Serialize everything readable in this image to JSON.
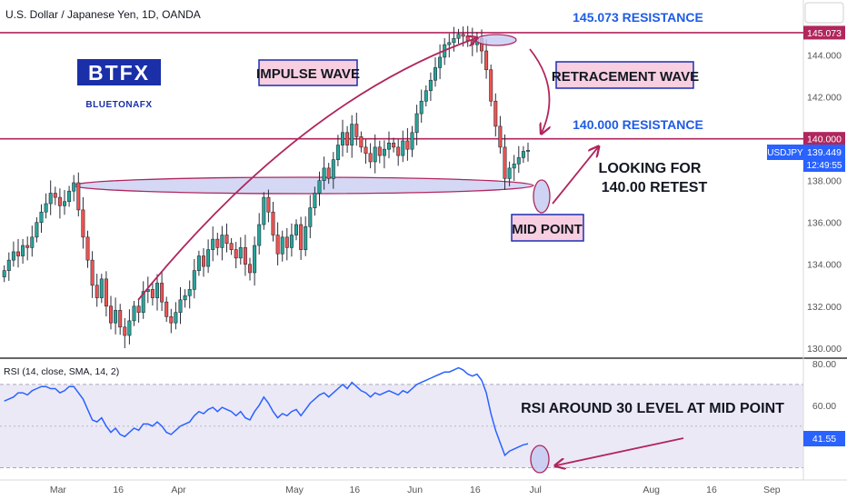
{
  "header": {
    "title": "U.S. Dollar / Japanese Yen, 1D, OANDA"
  },
  "logo": {
    "main": "BTFX",
    "sub": "BLUETONAFX"
  },
  "colors": {
    "up": "#26a69a",
    "down": "#ef5350",
    "accent_blue": "#2962ff",
    "resistance": "#b0265d",
    "annotation_box": "#f8cfe0",
    "annotation_border": "#1c2fb3",
    "ellipse_fill": "#c5cbf2",
    "rsi_line": "#2962ff",
    "rsi_band": "#ece9f7"
  },
  "price_axis": {
    "ticks": [
      "144.000",
      "142.000",
      "140.000",
      "138.000",
      "136.000",
      "134.000",
      "132.000",
      "130.000"
    ],
    "tags": [
      {
        "label": "145.073",
        "value": 145.073,
        "color": "#b0265d"
      },
      {
        "label": "140.000",
        "value": 140.0,
        "color": "#b0265d"
      }
    ],
    "symbol_tag": {
      "symbol": "USDJPY",
      "price": "139.449",
      "countdown": "12:49:55"
    }
  },
  "rsi": {
    "title": "RSI (14, close, SMA, 14, 2)",
    "ticks": [
      "80.00",
      "60.00"
    ],
    "value_tag": "41.55",
    "upper": 70,
    "lower": 30,
    "range": [
      25,
      80
    ]
  },
  "time_axis": {
    "labels": [
      "Mar",
      "16",
      "Apr",
      "May",
      "16",
      "Jun",
      "16",
      "Jul",
      "Aug",
      "16",
      "Sep"
    ]
  },
  "annotations": {
    "resistance_top": "145.073 RESISTANCE",
    "resistance_mid": "140.000 RESISTANCE",
    "impulse": "IMPULSE WAVE",
    "retracement": "RETRACEMENT WAVE",
    "looking_1": "LOOKING FOR",
    "looking_2": "140.00 RETEST",
    "midpoint": "MID POINT",
    "rsi_note": "RSI AROUND 30 LEVEL AT MID POINT"
  },
  "chart_data": {
    "type": "candlestick",
    "title": "U.S. Dollar / Japanese Yen, 1D, OANDA",
    "ylim": [
      129.6,
      146.2
    ],
    "levels": [
      145.073,
      140.0
    ],
    "last_price": 139.449,
    "closes": [
      133.7,
      134.2,
      134.6,
      134.4,
      134.9,
      134.8,
      135.3,
      136.0,
      136.5,
      136.9,
      137.4,
      137.2,
      136.8,
      137.0,
      137.5,
      137.9,
      136.6,
      135.3,
      134.2,
      133.0,
      132.4,
      133.3,
      132.0,
      131.2,
      131.8,
      131.0,
      130.6,
      131.3,
      132.0,
      131.7,
      132.7,
      132.8,
      132.4,
      133.1,
      132.2,
      131.5,
      131.2,
      131.7,
      132.3,
      132.5,
      132.8,
      133.7,
      134.4,
      133.9,
      134.7,
      135.2,
      134.8,
      135.4,
      135.0,
      134.7,
      134.3,
      134.8,
      134.0,
      133.6,
      134.9,
      135.9,
      137.2,
      136.5,
      135.4,
      134.5,
      135.3,
      134.8,
      135.4,
      135.9,
      134.7,
      135.8,
      136.7,
      137.4,
      138.0,
      138.6,
      138.1,
      139.0,
      139.7,
      140.3,
      139.7,
      140.7,
      140.1,
      139.6,
      139.3,
      138.9,
      139.6,
      139.2,
      139.5,
      139.8,
      139.6,
      139.2,
      139.9,
      139.5,
      140.3,
      141.2,
      141.8,
      142.3,
      142.8,
      143.4,
      143.9,
      144.5,
      144.6,
      144.8,
      145.0,
      144.9,
      144.7,
      144.5,
      144.8,
      144.2,
      143.3,
      141.8,
      140.6,
      139.6,
      138.1,
      138.6,
      138.8,
      139.1,
      139.4,
      139.45
    ],
    "rsi_values": [
      62,
      63,
      64,
      66,
      66,
      65,
      67,
      68,
      69,
      69,
      68,
      68,
      66,
      67,
      69,
      69,
      66,
      63,
      58,
      53,
      52,
      54,
      50,
      47,
      49,
      46,
      45,
      47,
      49,
      48,
      51,
      51,
      50,
      52,
      50,
      47,
      46,
      48,
      50,
      51,
      52,
      55,
      57,
      56,
      58,
      59,
      57,
      59,
      58,
      57,
      55,
      57,
      54,
      53,
      57,
      60,
      64,
      61,
      57,
      54,
      56,
      55,
      57,
      58,
      55,
      58,
      61,
      63,
      65,
      66,
      64,
      66,
      68,
      70,
      68,
      71,
      69,
      67,
      66,
      64,
      66,
      65,
      66,
      67,
      66,
      65,
      67,
      66,
      68,
      70,
      71,
      72,
      73,
      74,
      75,
      76,
      76,
      77,
      78,
      77,
      75,
      74,
      75,
      72,
      66,
      56,
      48,
      42,
      36,
      38,
      39,
      40,
      41,
      41.55
    ],
    "time_labels": [
      "Mar",
      "16",
      "Apr",
      "May",
      "16",
      "Jun",
      "16",
      "Jul",
      "Aug",
      "16",
      "Sep"
    ]
  }
}
